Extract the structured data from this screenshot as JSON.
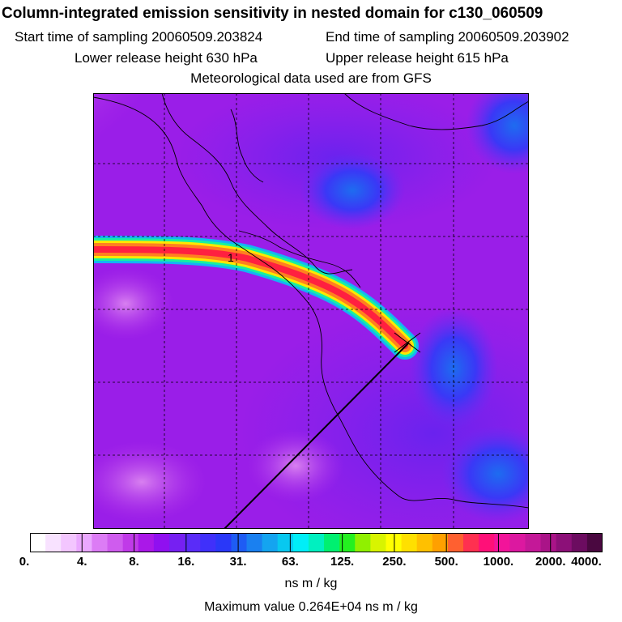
{
  "header": {
    "title": "Column-integrated emission sensitivity in nested domain for c130_060509",
    "start": "Start time of sampling 20060509.203824",
    "end": "End time of sampling 20060509.203902",
    "lower": "Lower release height  630 hPa",
    "upper": "Upper release height  615 hPa",
    "met": "Meteorological data used are from GFS"
  },
  "map": {
    "label_1": "1"
  },
  "colorbar": {
    "ticks": [
      "0.",
      "4.",
      "8.",
      "16.",
      "31.",
      "63.",
      "125.",
      "250.",
      "500.",
      "1000.",
      "2000.",
      "4000."
    ],
    "colors": [
      "#ffffff",
      "#f8e2ff",
      "#f3c6ff",
      "#eaa8ff",
      "#dc7cf5",
      "#cf5cee",
      "#c03ae8",
      "#aa18e8",
      "#9010f0",
      "#7620f2",
      "#5a2cf8",
      "#4030fa",
      "#2a38f8",
      "#1e5cf4",
      "#1a80f0",
      "#14a4f0",
      "#08c8f0",
      "#00eef8",
      "#00f0c0",
      "#00f070",
      "#24f020",
      "#90f000",
      "#d8f400",
      "#ffff00",
      "#ffe000",
      "#ffc000",
      "#ffa000",
      "#ff6030",
      "#ff3050",
      "#ff1078",
      "#f2149a",
      "#dc18a0",
      "#c41898",
      "#aa1488",
      "#8c1078",
      "#6c0c60",
      "#4a0840"
    ],
    "units": "ns m / kg",
    "max": "Maximum value  0.264E+04 ns m / kg"
  }
}
